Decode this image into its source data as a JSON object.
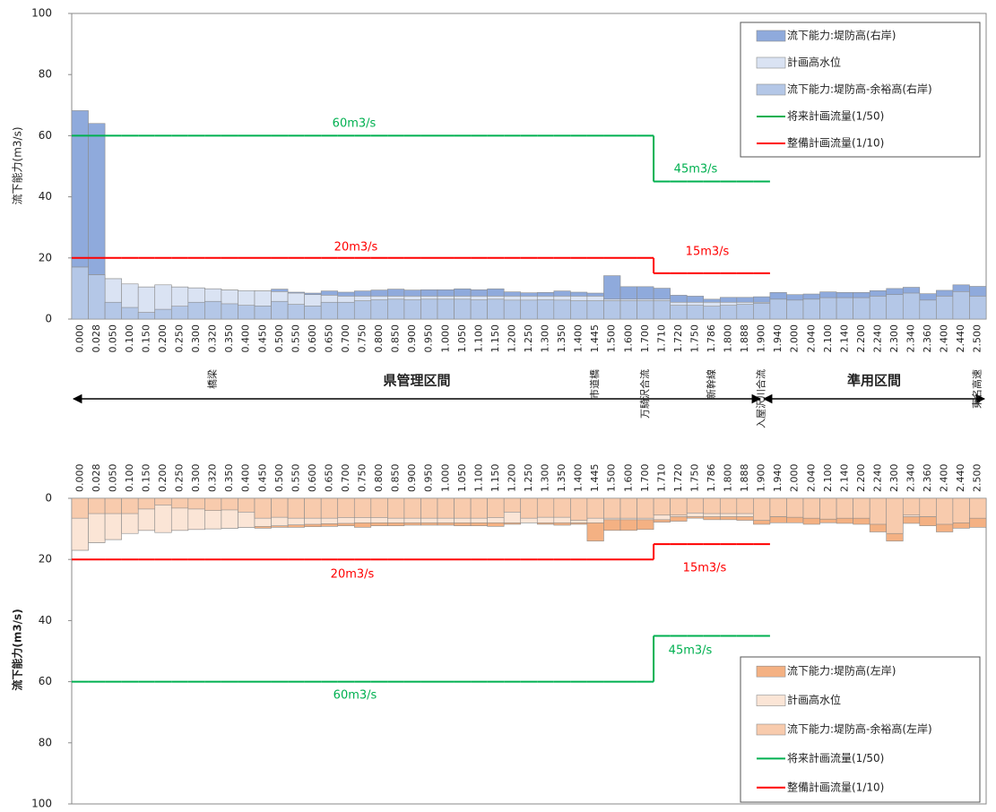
{
  "charts": [
    {
      "type": "bar",
      "y_label": "流下能力(m3/s)",
      "ylim": [
        0,
        100
      ],
      "yticks": [
        0,
        20,
        40,
        60,
        80,
        100
      ],
      "inverted": false,
      "grid": false,
      "legend": "upper right",
      "categories": [
        "0.000",
        "0.028",
        "0.050",
        "0.100",
        "0.150",
        "0.200",
        "0.250",
        "0.300",
        "0.320",
        "0.350",
        "0.400",
        "0.450",
        "0.500",
        "0.550",
        "0.600",
        "0.650",
        "0.700",
        "0.750",
        "0.800",
        "0.850",
        "0.900",
        "0.950",
        "1.000",
        "1.050",
        "1.100",
        "1.150",
        "1.200",
        "1.250",
        "1.300",
        "1.350",
        "1.400",
        "1.445",
        "1.500",
        "1.600",
        "1.700",
        "1.710",
        "1.720",
        "1.750",
        "1.786",
        "1.800",
        "1.888",
        "1.900",
        "1.940",
        "2.000",
        "2.040",
        "2.100",
        "2.140",
        "2.200",
        "2.240",
        "2.300",
        "2.340",
        "2.360",
        "2.400",
        "2.440",
        "2.500"
      ],
      "landmarks": [
        null,
        null,
        null,
        null,
        null,
        null,
        null,
        null,
        "橋梁",
        null,
        null,
        null,
        null,
        null,
        null,
        null,
        null,
        null,
        null,
        null,
        null,
        null,
        null,
        null,
        null,
        null,
        null,
        null,
        null,
        null,
        null,
        "市道橋",
        null,
        null,
        "万騎沢合流",
        null,
        null,
        null,
        "新幹線",
        null,
        null,
        "入屋沢川合流",
        null,
        null,
        null,
        null,
        null,
        null,
        null,
        null,
        null,
        null,
        null,
        null,
        "東名高速"
      ],
      "sections": [
        "県管理区間",
        "準用区間"
      ],
      "series": [
        {
          "name": "流下能力:堤防高(右岸)",
          "type": "bar",
          "color": "#8faadc",
          "values": [
            68.2,
            64,
            13.2,
            11.5,
            10.5,
            11.2,
            10.5,
            10.2,
            9.9,
            9.5,
            9.3,
            9.2,
            9.8,
            8.8,
            8.5,
            9.2,
            8.8,
            9.2,
            9.5,
            9.8,
            9.5,
            9.6,
            9.6,
            9.9,
            9.6,
            9.9,
            8.9,
            8.6,
            8.7,
            9.2,
            8.8,
            8.5,
            14.2,
            10.6,
            10.6,
            10.1,
            7.8,
            7.5,
            6.5,
            7.1,
            7.1,
            7.3,
            8.7,
            8.0,
            8.2,
            8.9,
            8.7,
            8.7,
            9.3,
            10.0,
            10.4,
            8.3,
            9.4,
            11.2,
            10.7
          ]
        },
        {
          "name": "計画高水位",
          "type": "bar",
          "color": "#dae3f3",
          "values": [
            17,
            14.5,
            13.2,
            11.5,
            10.5,
            11.2,
            10.5,
            10.2,
            9.9,
            9.5,
            9.3,
            9.2,
            9,
            8.5,
            8,
            7.8,
            7.5,
            7.5,
            7.5,
            7.5,
            7.5,
            7.5,
            7.5,
            7.5,
            7.5,
            7.5,
            7.5,
            7.5,
            7.5,
            7.5,
            7.5,
            7.5,
            6.5,
            6.5,
            6.5,
            6.5,
            5.5,
            5.5,
            5.5,
            5.5,
            5.5,
            5.5,
            5.5,
            5.5,
            5.5,
            5.5,
            5.5,
            5.5,
            5.5,
            5.5,
            5.5,
            5.5,
            5.5,
            5.5,
            5.5
          ]
        },
        {
          "name": "流下能力:堤防高-余裕高(右岸)",
          "type": "bar",
          "color": "#b4c7e7",
          "values": [
            17,
            14.5,
            5.5,
            3.8,
            2.2,
            3.2,
            4.2,
            5.5,
            5.8,
            5,
            4.5,
            4.3,
            5.8,
            4.8,
            4.3,
            5.5,
            5.5,
            6,
            6.3,
            6.5,
            6.3,
            6.5,
            6.5,
            6.5,
            6.3,
            6.5,
            6.2,
            6.2,
            6.3,
            6.2,
            6,
            6,
            6,
            6,
            6,
            6,
            4.5,
            4.5,
            4.2,
            4.5,
            4.8,
            5.2,
            6.5,
            6.2,
            6.5,
            7,
            7,
            7,
            7.5,
            8,
            8.5,
            6.2,
            7.5,
            9,
            7.5
          ]
        },
        {
          "name": "将来計画流量(1/50)",
          "type": "line",
          "color": "#00b050",
          "values": [
            60,
            60,
            60,
            60,
            60,
            60,
            60,
            60,
            60,
            60,
            60,
            60,
            60,
            60,
            60,
            60,
            60,
            60,
            60,
            60,
            60,
            60,
            60,
            60,
            60,
            60,
            60,
            60,
            60,
            60,
            60,
            60,
            60,
            60,
            60,
            45,
            45,
            45,
            45,
            45,
            45,
            45,
            null,
            null,
            null,
            null,
            null,
            null,
            null,
            null,
            null,
            null,
            null,
            null,
            null
          ]
        },
        {
          "name": "整備計画流量(1/10)",
          "type": "line",
          "color": "#ff0000",
          "values": [
            20,
            20,
            20,
            20,
            20,
            20,
            20,
            20,
            20,
            20,
            20,
            20,
            20,
            20,
            20,
            20,
            20,
            20,
            20,
            20,
            20,
            20,
            20,
            20,
            20,
            20,
            20,
            20,
            20,
            20,
            20,
            20,
            20,
            20,
            20,
            15,
            15,
            15,
            15,
            15,
            15,
            15,
            null,
            null,
            null,
            null,
            null,
            null,
            null,
            null,
            null,
            null,
            null,
            null,
            null
          ]
        }
      ],
      "annotations": [
        {
          "text": "60m3/s",
          "color": "#00b050"
        },
        {
          "text": "45m3/s",
          "color": "#00b050"
        },
        {
          "text": "20m3/s",
          "color": "#ff0000"
        },
        {
          "text": "15m3/s",
          "color": "#ff0000"
        }
      ]
    },
    {
      "type": "bar",
      "y_label": "流下能力(m3/s)",
      "ylim": [
        0,
        100
      ],
      "yticks": [
        0,
        20,
        40,
        60,
        80,
        100
      ],
      "inverted": true,
      "grid": false,
      "legend": "lower right",
      "categories": [
        "0.000",
        "0.028",
        "0.050",
        "0.100",
        "0.150",
        "0.200",
        "0.250",
        "0.300",
        "0.320",
        "0.350",
        "0.400",
        "0.450",
        "0.500",
        "0.550",
        "0.600",
        "0.650",
        "0.700",
        "0.750",
        "0.800",
        "0.850",
        "0.900",
        "0.950",
        "1.000",
        "1.050",
        "1.100",
        "1.150",
        "1.200",
        "1.250",
        "1.300",
        "1.350",
        "1.400",
        "1.445",
        "1.500",
        "1.600",
        "1.700",
        "1.710",
        "1.720",
        "1.750",
        "1.786",
        "1.800",
        "1.888",
        "1.900",
        "1.940",
        "2.000",
        "2.040",
        "2.100",
        "2.140",
        "2.200",
        "2.240",
        "2.300",
        "2.340",
        "2.360",
        "2.400",
        "2.440",
        "2.500"
      ],
      "series": [
        {
          "name": "流下能力:堤防高(左岸)",
          "type": "bar",
          "color": "#f4b183",
          "values": [
            17,
            14.5,
            13.5,
            11.5,
            10.5,
            11.2,
            10.5,
            10.2,
            10,
            9.8,
            9.5,
            9.8,
            9.5,
            9.5,
            9.3,
            9.2,
            9,
            9.5,
            9,
            9,
            8.8,
            8.8,
            8.8,
            9,
            9,
            9.2,
            8.5,
            8,
            8.5,
            8.8,
            8.5,
            14,
            10.5,
            10.5,
            10.2,
            7.8,
            7.5,
            6.5,
            7,
            7,
            7.2,
            8.5,
            8,
            8,
            8.5,
            8,
            8.2,
            8.5,
            11,
            14,
            8.2,
            9,
            11,
            9.8,
            9.5
          ]
        },
        {
          "name": "計画高水位",
          "type": "bar",
          "color": "#fbe5d6",
          "values": [
            17,
            14.5,
            13.5,
            11.5,
            10.5,
            11.2,
            10.5,
            10.2,
            10,
            9.8,
            9.5,
            9.2,
            9,
            8.7,
            8.5,
            8.3,
            8.2,
            8,
            8,
            8,
            8,
            8,
            8,
            8,
            8,
            8,
            8,
            8,
            8,
            8,
            8,
            8,
            7,
            7,
            7,
            7,
            6,
            6,
            6,
            6,
            6,
            6,
            6,
            6,
            6,
            6,
            6,
            6,
            6,
            6,
            6,
            6,
            6,
            6,
            6
          ]
        },
        {
          "name": "流下能力:堤防高-余裕高(左岸)",
          "type": "bar",
          "color": "#f8cbad",
          "values": [
            6.5,
            5,
            5,
            5,
            3.5,
            2.2,
            3.2,
            3.5,
            4,
            3.8,
            4.5,
            6.5,
            6.2,
            6.5,
            6.5,
            6.5,
            6.3,
            6.3,
            6.3,
            6.5,
            6.5,
            6.5,
            6.5,
            6.5,
            6.5,
            6.3,
            4.5,
            6.5,
            6.2,
            6.2,
            7.2,
            6.5,
            6.5,
            6.5,
            6.5,
            5.5,
            5.5,
            4.8,
            5,
            5,
            5,
            7.2,
            6,
            6.2,
            6.5,
            6.8,
            6.5,
            6.5,
            8.5,
            11.5,
            5.5,
            6,
            8.5,
            8,
            6.5
          ]
        },
        {
          "name": "将来計画流量(1/50)",
          "type": "line",
          "color": "#00b050",
          "values": [
            60,
            60,
            60,
            60,
            60,
            60,
            60,
            60,
            60,
            60,
            60,
            60,
            60,
            60,
            60,
            60,
            60,
            60,
            60,
            60,
            60,
            60,
            60,
            60,
            60,
            60,
            60,
            60,
            60,
            60,
            60,
            60,
            60,
            60,
            60,
            45,
            45,
            45,
            45,
            45,
            45,
            45,
            null,
            null,
            null,
            null,
            null,
            null,
            null,
            null,
            null,
            null,
            null,
            null,
            null
          ]
        },
        {
          "name": "整備計画流量(1/10)",
          "type": "line",
          "color": "#ff0000",
          "values": [
            20,
            20,
            20,
            20,
            20,
            20,
            20,
            20,
            20,
            20,
            20,
            20,
            20,
            20,
            20,
            20,
            20,
            20,
            20,
            20,
            20,
            20,
            20,
            20,
            20,
            20,
            20,
            20,
            20,
            20,
            20,
            20,
            20,
            20,
            20,
            15,
            15,
            15,
            15,
            15,
            15,
            15,
            null,
            null,
            null,
            null,
            null,
            null,
            null,
            null,
            null,
            null,
            null,
            null,
            null
          ]
        }
      ],
      "annotations": [
        {
          "text": "20m3/s",
          "color": "#ff0000"
        },
        {
          "text": "15m3/s",
          "color": "#ff0000"
        },
        {
          "text": "45m3/s",
          "color": "#00b050"
        },
        {
          "text": "60m3/s",
          "color": "#00b050"
        }
      ]
    }
  ]
}
